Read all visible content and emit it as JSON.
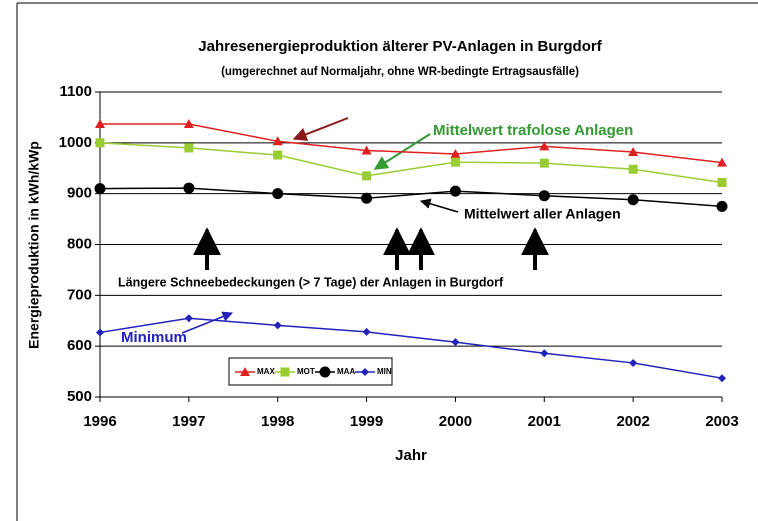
{
  "chart_data": {
    "type": "line",
    "title": "Jahresenergieproduktion älterer PV-Anlagen in Burgdorf",
    "subtitle": "(umgerechnet auf Normaljahr, ohne WR-bedingte Ertragsausfälle)",
    "x_label": "Jahr",
    "y_label": "Energieproduktion in kWh/kWp",
    "x": [
      1996,
      1997,
      1998,
      1999,
      2000,
      2001,
      2002,
      2003
    ],
    "xlim": [
      1996,
      2003
    ],
    "xticks": [
      1996,
      1997,
      1998,
      1999,
      2000,
      2001,
      2002,
      2003
    ],
    "ylim": [
      500,
      1100
    ],
    "yticks": [
      500,
      600,
      700,
      800,
      900,
      1000,
      1100
    ],
    "grid": true,
    "series": [
      {
        "name": "MAX",
        "color": "#e02020",
        "marker": "triangle",
        "values": [
          1037,
          1037,
          1003,
          985,
          978,
          993,
          982,
          961
        ]
      },
      {
        "name": "MOT",
        "color": "#99cc33",
        "marker": "square",
        "values": [
          1000,
          990,
          976,
          935,
          962,
          960,
          948,
          922
        ]
      },
      {
        "name": "MAA",
        "color": "#000000",
        "marker": "circle",
        "values": [
          910,
          911,
          900,
          891,
          905,
          896,
          888,
          875
        ]
      },
      {
        "name": "MIN",
        "color": "#2222bb",
        "marker": "diamond",
        "values": [
          627,
          655,
          641,
          628,
          608,
          586,
          567,
          537
        ]
      }
    ],
    "annotations": [
      "Mittelwert trafolose Anlagen",
      "Mittelwert aller Anlagen",
      "Längere Schneebedeckungen  (> 7 Tage) der Anlagen in Burgdorf",
      "Minimum"
    ]
  }
}
